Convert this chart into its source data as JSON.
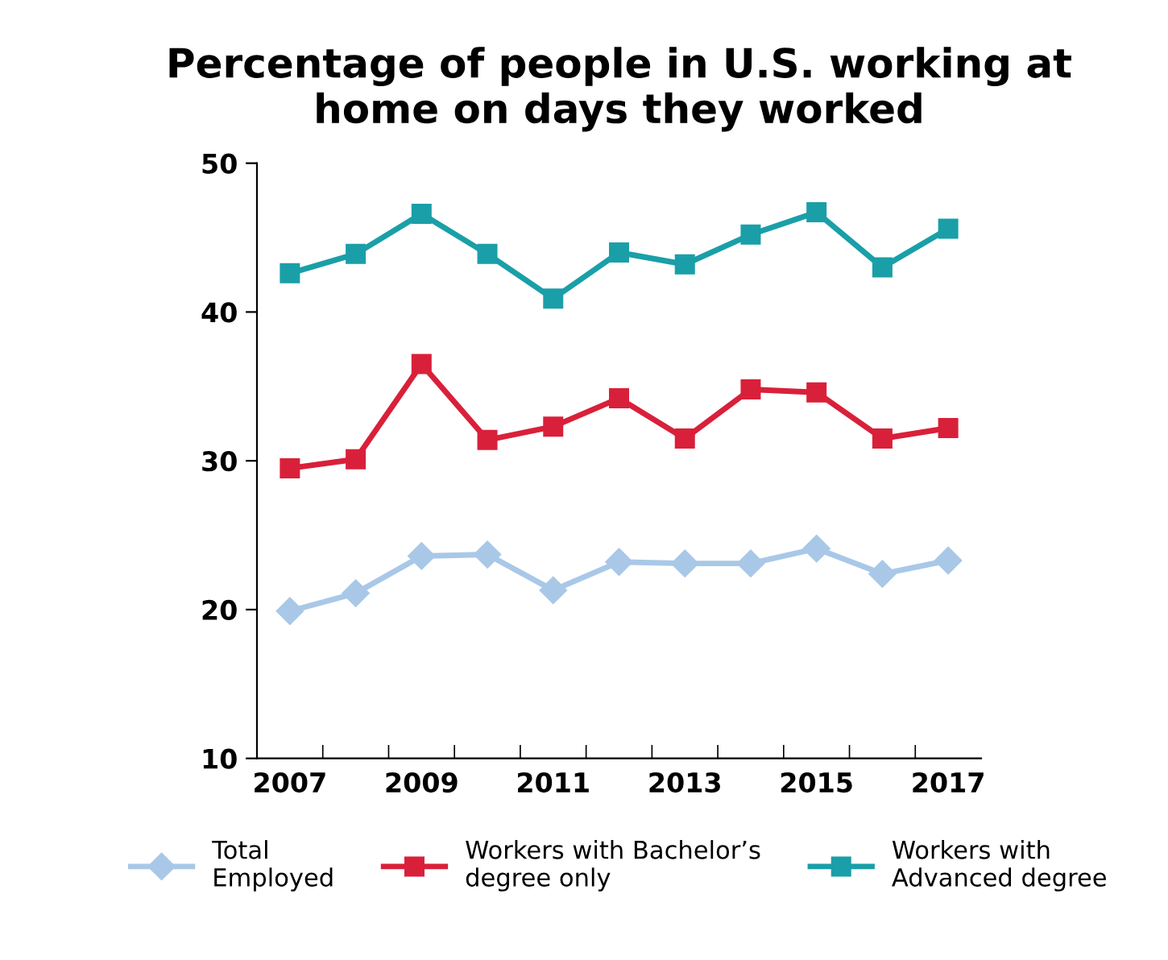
{
  "chart_data": {
    "type": "line",
    "title": "Percentage of people in U.S. working at\nhome on days they worked",
    "categories": [
      "2007",
      null,
      "2009",
      null,
      "2011",
      null,
      "2013",
      null,
      "2015",
      null,
      "2017"
    ],
    "series": [
      {
        "name": "Total\nEmployed",
        "color": "#a9c8e8",
        "marker": "diamond",
        "values": [
          19.9,
          21.1,
          23.6,
          23.7,
          21.3,
          23.2,
          23.1,
          23.1,
          24.1,
          22.4,
          23.3
        ]
      },
      {
        "name": "Workers with Bachelor’s\ndegree only",
        "color": "#d9203a",
        "marker": "square",
        "values": [
          29.5,
          30.1,
          36.5,
          31.4,
          32.3,
          34.2,
          31.5,
          34.8,
          34.6,
          31.5,
          32.2
        ]
      },
      {
        "name": "Workers with\nAdvanced degree",
        "color": "#1a9fa8",
        "marker": "square",
        "values": [
          42.6,
          43.9,
          46.6,
          43.9,
          40.9,
          44.0,
          43.2,
          45.2,
          46.7,
          43.0,
          45.6
        ]
      }
    ],
    "ylim": [
      10,
      50
    ],
    "yticks": [
      10,
      20,
      30,
      40,
      50
    ],
    "grid": false,
    "legend": "bottom",
    "line_style": "solid"
  }
}
